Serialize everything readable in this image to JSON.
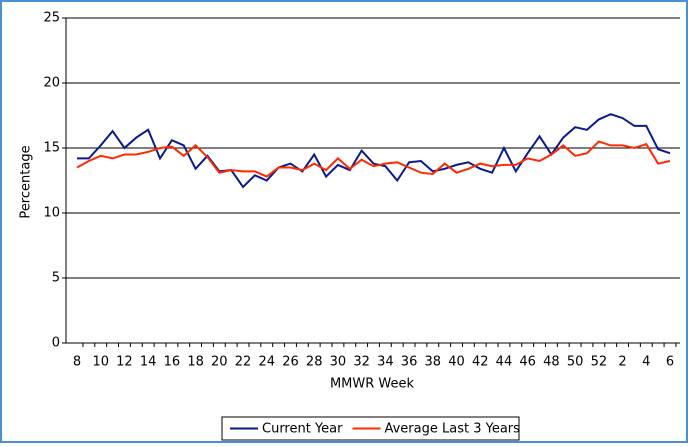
{
  "chart_data": {
    "type": "line",
    "x_label": "MMWR Week",
    "y_label": "Percentage",
    "categories": [
      8,
      null,
      10,
      null,
      12,
      null,
      14,
      null,
      16,
      null,
      18,
      null,
      20,
      null,
      22,
      null,
      24,
      null,
      26,
      null,
      28,
      null,
      30,
      null,
      32,
      null,
      34,
      null,
      36,
      null,
      38,
      null,
      40,
      null,
      42,
      null,
      44,
      null,
      46,
      null,
      48,
      null,
      50,
      null,
      52,
      null,
      2,
      null,
      4,
      null,
      6
    ],
    "series": [
      {
        "name": "Current Year",
        "color": "#0a1a8c",
        "values": [
          14.2,
          14.2,
          15.2,
          16.3,
          15.0,
          15.8,
          16.4,
          14.2,
          15.6,
          15.2,
          13.4,
          14.4,
          13.2,
          13.3,
          12.0,
          12.9,
          12.5,
          13.5,
          13.8,
          13.2,
          14.5,
          12.8,
          13.7,
          13.3,
          14.8,
          13.8,
          13.6,
          12.5,
          13.9,
          14.0,
          13.2,
          13.4,
          13.7,
          13.9,
          13.4,
          13.1,
          15.0,
          13.2,
          14.6,
          15.9,
          14.5,
          15.8,
          16.6,
          16.4,
          17.2,
          17.6,
          17.3,
          16.7,
          16.7,
          14.9,
          14.6
        ]
      },
      {
        "name": "Average Last 3 Years",
        "color": "#ff2a00",
        "values": [
          13.5,
          14.0,
          14.4,
          14.2,
          14.5,
          14.5,
          14.7,
          15.0,
          15.1,
          14.4,
          15.2,
          14.3,
          13.1,
          13.3,
          13.2,
          13.2,
          12.8,
          13.5,
          13.5,
          13.3,
          13.8,
          13.3,
          14.2,
          13.4,
          14.1,
          13.6,
          13.8,
          13.9,
          13.5,
          13.1,
          13.0,
          13.8,
          13.1,
          13.4,
          13.8,
          13.6,
          13.7,
          13.7,
          14.2,
          14.0,
          14.5,
          15.2,
          14.4,
          14.6,
          15.5,
          15.2,
          15.2,
          15.0,
          15.3,
          13.8,
          14.0
        ]
      }
    ],
    "ylim": [
      0,
      25
    ],
    "yticks": [
      0,
      5,
      10,
      15,
      20,
      25
    ],
    "grid": true,
    "legend": "bottom"
  }
}
